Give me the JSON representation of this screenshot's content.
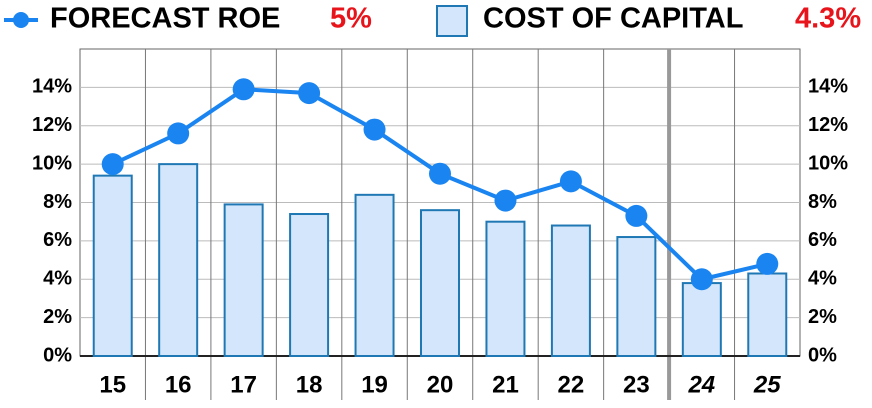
{
  "chart_data": {
    "type": "bar_line",
    "categories": [
      "15",
      "16",
      "17",
      "18",
      "19",
      "20",
      "21",
      "22",
      "23",
      "24",
      "25"
    ],
    "italic_from": 9,
    "series": [
      {
        "name": "FORECAST ROE",
        "type": "line",
        "color": "#1a85f0",
        "highlight": {
          "value": 5,
          "label": "5%"
        },
        "values": [
          10.0,
          11.6,
          13.9,
          13.7,
          11.8,
          9.5,
          8.1,
          9.1,
          7.3,
          4.0,
          4.8
        ]
      },
      {
        "name": "COST OF CAPITAL",
        "type": "bar",
        "color": "#d3e6fb",
        "stroke": "#1f78b4",
        "highlight": {
          "value": 4.3,
          "label": "4.3%"
        },
        "values": [
          9.4,
          10.0,
          7.9,
          7.4,
          8.4,
          7.6,
          7.0,
          6.8,
          6.2,
          3.8,
          4.3
        ]
      }
    ],
    "ylim": [
      0,
      16
    ],
    "yticks": [
      {
        "value": 0,
        "label": "0%"
      },
      {
        "value": 2,
        "label": "2%"
      },
      {
        "value": 4,
        "label": "4%"
      },
      {
        "value": 6,
        "label": "6%"
      },
      {
        "value": 8,
        "label": "8%"
      },
      {
        "value": 10,
        "label": "10%"
      },
      {
        "value": 12,
        "label": "12%"
      },
      {
        "value": 14,
        "label": "14%"
      }
    ],
    "grid": true
  }
}
